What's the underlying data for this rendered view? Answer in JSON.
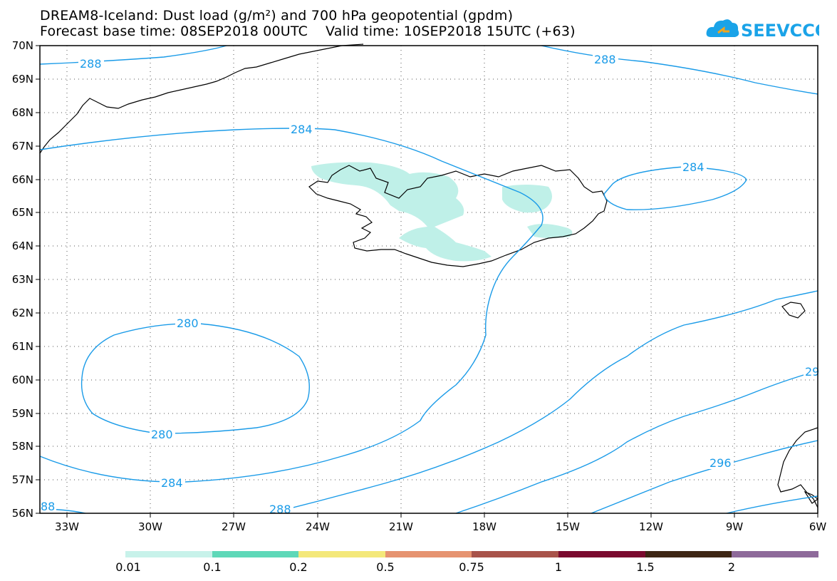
{
  "header": {
    "line1": "DREAM8-Iceland: Dust load (g/m²) and 700 hPa geopotential (gpdm)",
    "line2": "Forecast base time: 08SEP2018 00UTC    Valid time: 10SEP2018 15UTC (+63)"
  },
  "logo": {
    "text": "SEEVCCC",
    "color": "#1aa3e8",
    "icon": "cloud-icon"
  },
  "map": {
    "lat_labels": [
      "70N",
      "69N",
      "68N",
      "67N",
      "66N",
      "65N",
      "64N",
      "63N",
      "62N",
      "61N",
      "60N",
      "59N",
      "58N",
      "57N",
      "56N"
    ],
    "lon_labels": [
      "33W",
      "30W",
      "27W",
      "24W",
      "21W",
      "18W",
      "15W",
      "12W",
      "9W",
      "6W"
    ],
    "contour_color": "#1a9be8",
    "dust_fill_color": "#bff0e8",
    "contour_labels": [
      "288",
      "288",
      "284",
      "284",
      "280",
      "280",
      "284",
      "288",
      "296",
      "29",
      "88"
    ]
  },
  "colorbar": {
    "colors": [
      "#c8f2ea",
      "#5ed8b8",
      "#f4e87a",
      "#e69370",
      "#a8534a",
      "#7a0a2e",
      "#3d2614",
      "#8e6a9a"
    ],
    "labels": [
      "0.01",
      "0.1",
      "0.2",
      "0.5",
      "0.75",
      "1",
      "1.5",
      "2"
    ]
  }
}
